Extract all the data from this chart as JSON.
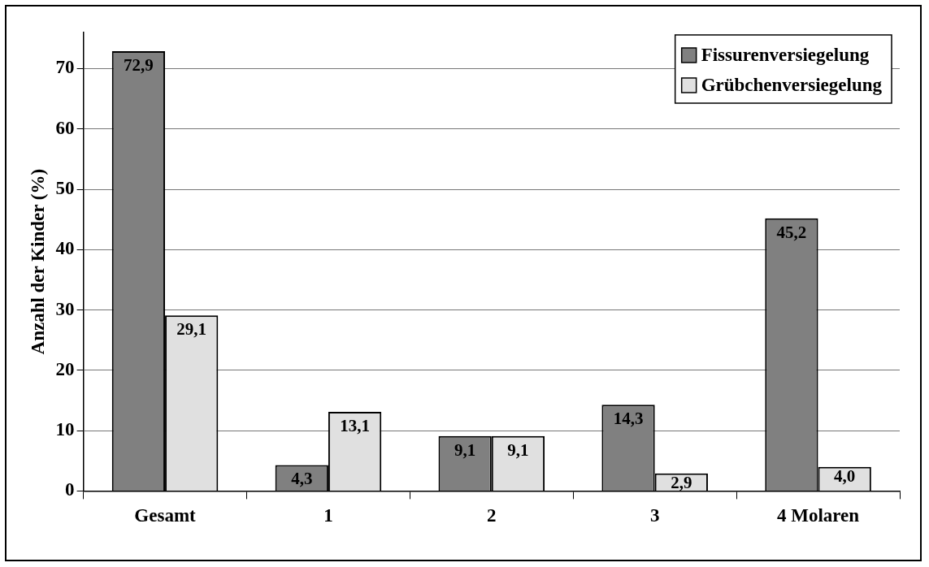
{
  "chart_data": {
    "type": "bar",
    "ylabel": "Anzahl der Kinder (%)",
    "categories": [
      "Gesamt",
      "1",
      "2",
      "3",
      "4 Molaren"
    ],
    "series": [
      {
        "name": "Fissurenversiegelung",
        "color": "#808080",
        "values": [
          72.9,
          4.3,
          9.1,
          14.3,
          45.2
        ],
        "value_labels": [
          "72,9",
          "4,3",
          "9,1",
          "14,3",
          "45,2"
        ]
      },
      {
        "name": "Grübchenversiegelung",
        "color": "#e0e0e0",
        "values": [
          29.1,
          13.1,
          9.1,
          2.9,
          4.0
        ],
        "value_labels": [
          "29,1",
          "13,1",
          "9,1",
          "2,9",
          "4,0"
        ]
      }
    ],
    "ylim": [
      0,
      76
    ],
    "yticks": [
      0,
      10,
      20,
      30,
      40,
      50,
      60,
      70
    ],
    "grid": "y",
    "legend": "top right"
  }
}
